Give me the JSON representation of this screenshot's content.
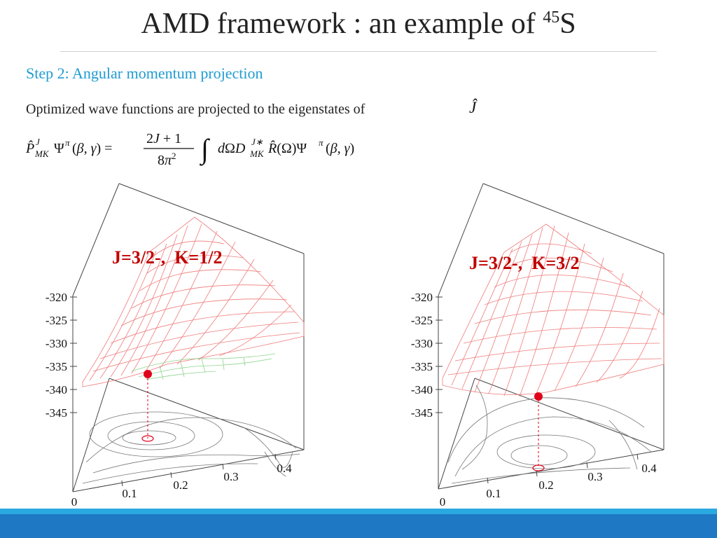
{
  "header": {
    "title_main": "AMD framework : an example of ",
    "title_sup": "45",
    "title_sym": "S"
  },
  "step": {
    "title": "Step 2: Angular momentum projection"
  },
  "description": "Optimized wave functions are projected to the eigenstates of",
  "plots": [
    {
      "label": "J=3/2-,  K=1/2",
      "z_ticks": [
        "-320",
        "-325",
        "-330",
        "-335",
        "-340",
        "-345"
      ],
      "x_ticks": [
        "0",
        "0.1",
        "0.2",
        "0.3",
        "0.4"
      ],
      "colors": {
        "surface": "#f07a7a",
        "surface_alt": "#8fd48f",
        "point": "#e0001a",
        "contour": "#777777"
      }
    },
    {
      "label": "J=3/2-,  K=3/2",
      "z_ticks": [
        "-320",
        "-325",
        "-330",
        "-335",
        "-340",
        "-345"
      ],
      "x_ticks": [
        "0",
        "0.1",
        "0.2",
        "0.3",
        "0.4"
      ],
      "colors": {
        "surface": "#f07a7a",
        "point": "#e0001a",
        "contour": "#777777"
      }
    }
  ],
  "footer": {
    "accent": "#2aa8e0",
    "bar": "#1f78c4"
  }
}
